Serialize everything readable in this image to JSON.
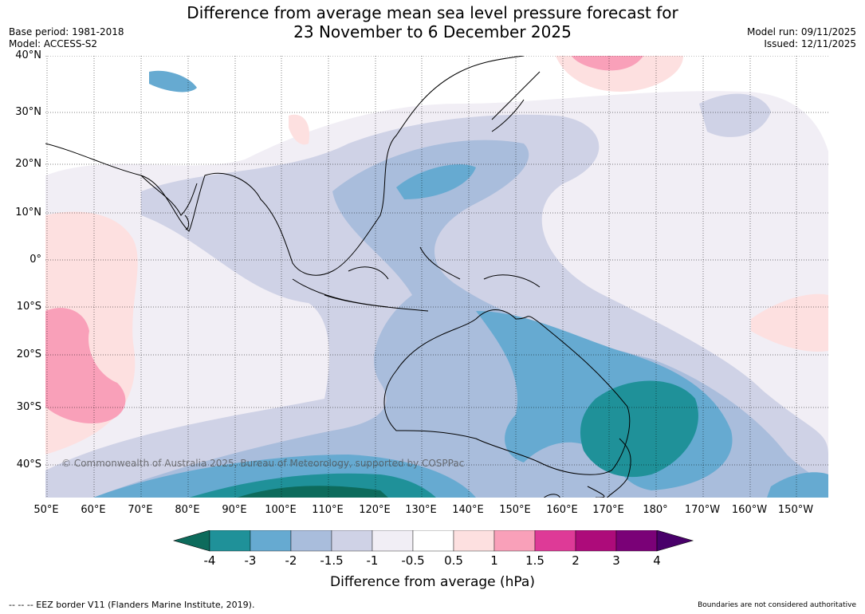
{
  "header": {
    "title_line1": "Difference from average mean sea level pressure forecast for",
    "title_line2": "23 November to 6 December 2025",
    "base_period": "Base period: 1981-2018",
    "model": "Model: ACCESS-S2",
    "model_run": "Model run: 09/11/2025",
    "issued": "Issued: 12/11/2025"
  },
  "map": {
    "latitude_labels": [
      "40°N",
      "30°N",
      "20°N",
      "10°N",
      "0°",
      "10°S",
      "20°S",
      "30°S",
      "40°S"
    ],
    "longitude_labels": [
      "50°E",
      "60°E",
      "70°E",
      "80°E",
      "90°E",
      "100°E",
      "110°E",
      "120°E",
      "130°E",
      "140°E",
      "150°E",
      "160°E",
      "170°E",
      "180°",
      "170°W",
      "160°W",
      "150°W"
    ],
    "watermark": "© Commonwealth of Australia 2025, Bureau of Meteorology, supported by COSPPac"
  },
  "colorbar": {
    "ticks": [
      "-4",
      "-3",
      "-2",
      "-1.5",
      "-1",
      "-0.5",
      "0.5",
      "1",
      "1.5",
      "2",
      "3",
      "4"
    ],
    "colors": [
      "#0d6b5c",
      "#1f9199",
      "#66aad1",
      "#a9bddc",
      "#cfd2e6",
      "#f1eef5",
      "#ffffff",
      "#fde0e0",
      "#f9a0b9",
      "#de3a97",
      "#ad0b7a",
      "#7a0177",
      "#49006a"
    ],
    "label": "Difference from average (hPa)"
  },
  "footer": {
    "eez_note": "--  --  -- EEZ border V11 (Flanders Marine Institute, 2019).",
    "boundaries_note": "Boundaries are not considered authoritative"
  }
}
